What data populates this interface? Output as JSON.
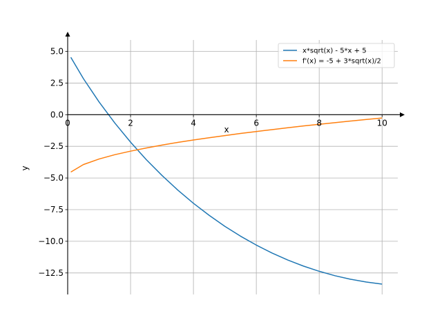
{
  "chart_data": {
    "type": "line",
    "xlabel": "x",
    "ylabel": "y",
    "xlim": [
      0,
      10.5
    ],
    "ylim": [
      -14.2,
      5.9
    ],
    "grid": true,
    "legend_position": "top-right",
    "x_ticks": [
      0,
      2,
      4,
      6,
      8,
      10
    ],
    "x_tick_labels": [
      "0",
      "2",
      "4",
      "6",
      "8",
      "10"
    ],
    "y_ticks": [
      5.0,
      2.5,
      0.0,
      -2.5,
      -5.0,
      -7.5,
      -10.0,
      -12.5
    ],
    "y_tick_labels": [
      "5.0",
      "2.5",
      "0.0",
      "−2.5",
      "−5.0",
      "−7.5",
      "−10.0",
      "−12.5"
    ],
    "series": [
      {
        "name": "x*sqrt(x) - 5*x + 5",
        "color": "#1f77b4",
        "x": [
          0.1,
          0.5,
          1,
          1.5,
          2,
          2.5,
          3,
          3.5,
          4,
          4.5,
          5,
          5.5,
          6,
          6.5,
          7,
          7.5,
          8,
          8.5,
          9,
          9.5,
          10
        ],
        "y": [
          4.53,
          2.85,
          1.0,
          -0.66,
          -2.17,
          -3.55,
          -4.8,
          -5.95,
          -7.0,
          -7.95,
          -8.82,
          -9.6,
          -10.3,
          -10.93,
          -11.48,
          -11.96,
          -12.37,
          -12.72,
          -13.0,
          -13.22,
          -13.38
        ]
      },
      {
        "name": "f'(x) = -5 + 3*sqrt(x)/2",
        "color": "#ff7f0e",
        "x": [
          0.1,
          0.5,
          1,
          1.5,
          2,
          2.5,
          3,
          3.5,
          4,
          4.5,
          5,
          5.5,
          6,
          6.5,
          7,
          7.5,
          8,
          8.5,
          9,
          9.5,
          10
        ],
        "y": [
          -4.53,
          -3.94,
          -3.5,
          -3.16,
          -2.88,
          -2.63,
          -2.4,
          -2.19,
          -2.0,
          -1.82,
          -1.65,
          -1.48,
          -1.33,
          -1.18,
          -1.03,
          -0.89,
          -0.76,
          -0.63,
          -0.5,
          -0.38,
          -0.26
        ]
      }
    ]
  }
}
